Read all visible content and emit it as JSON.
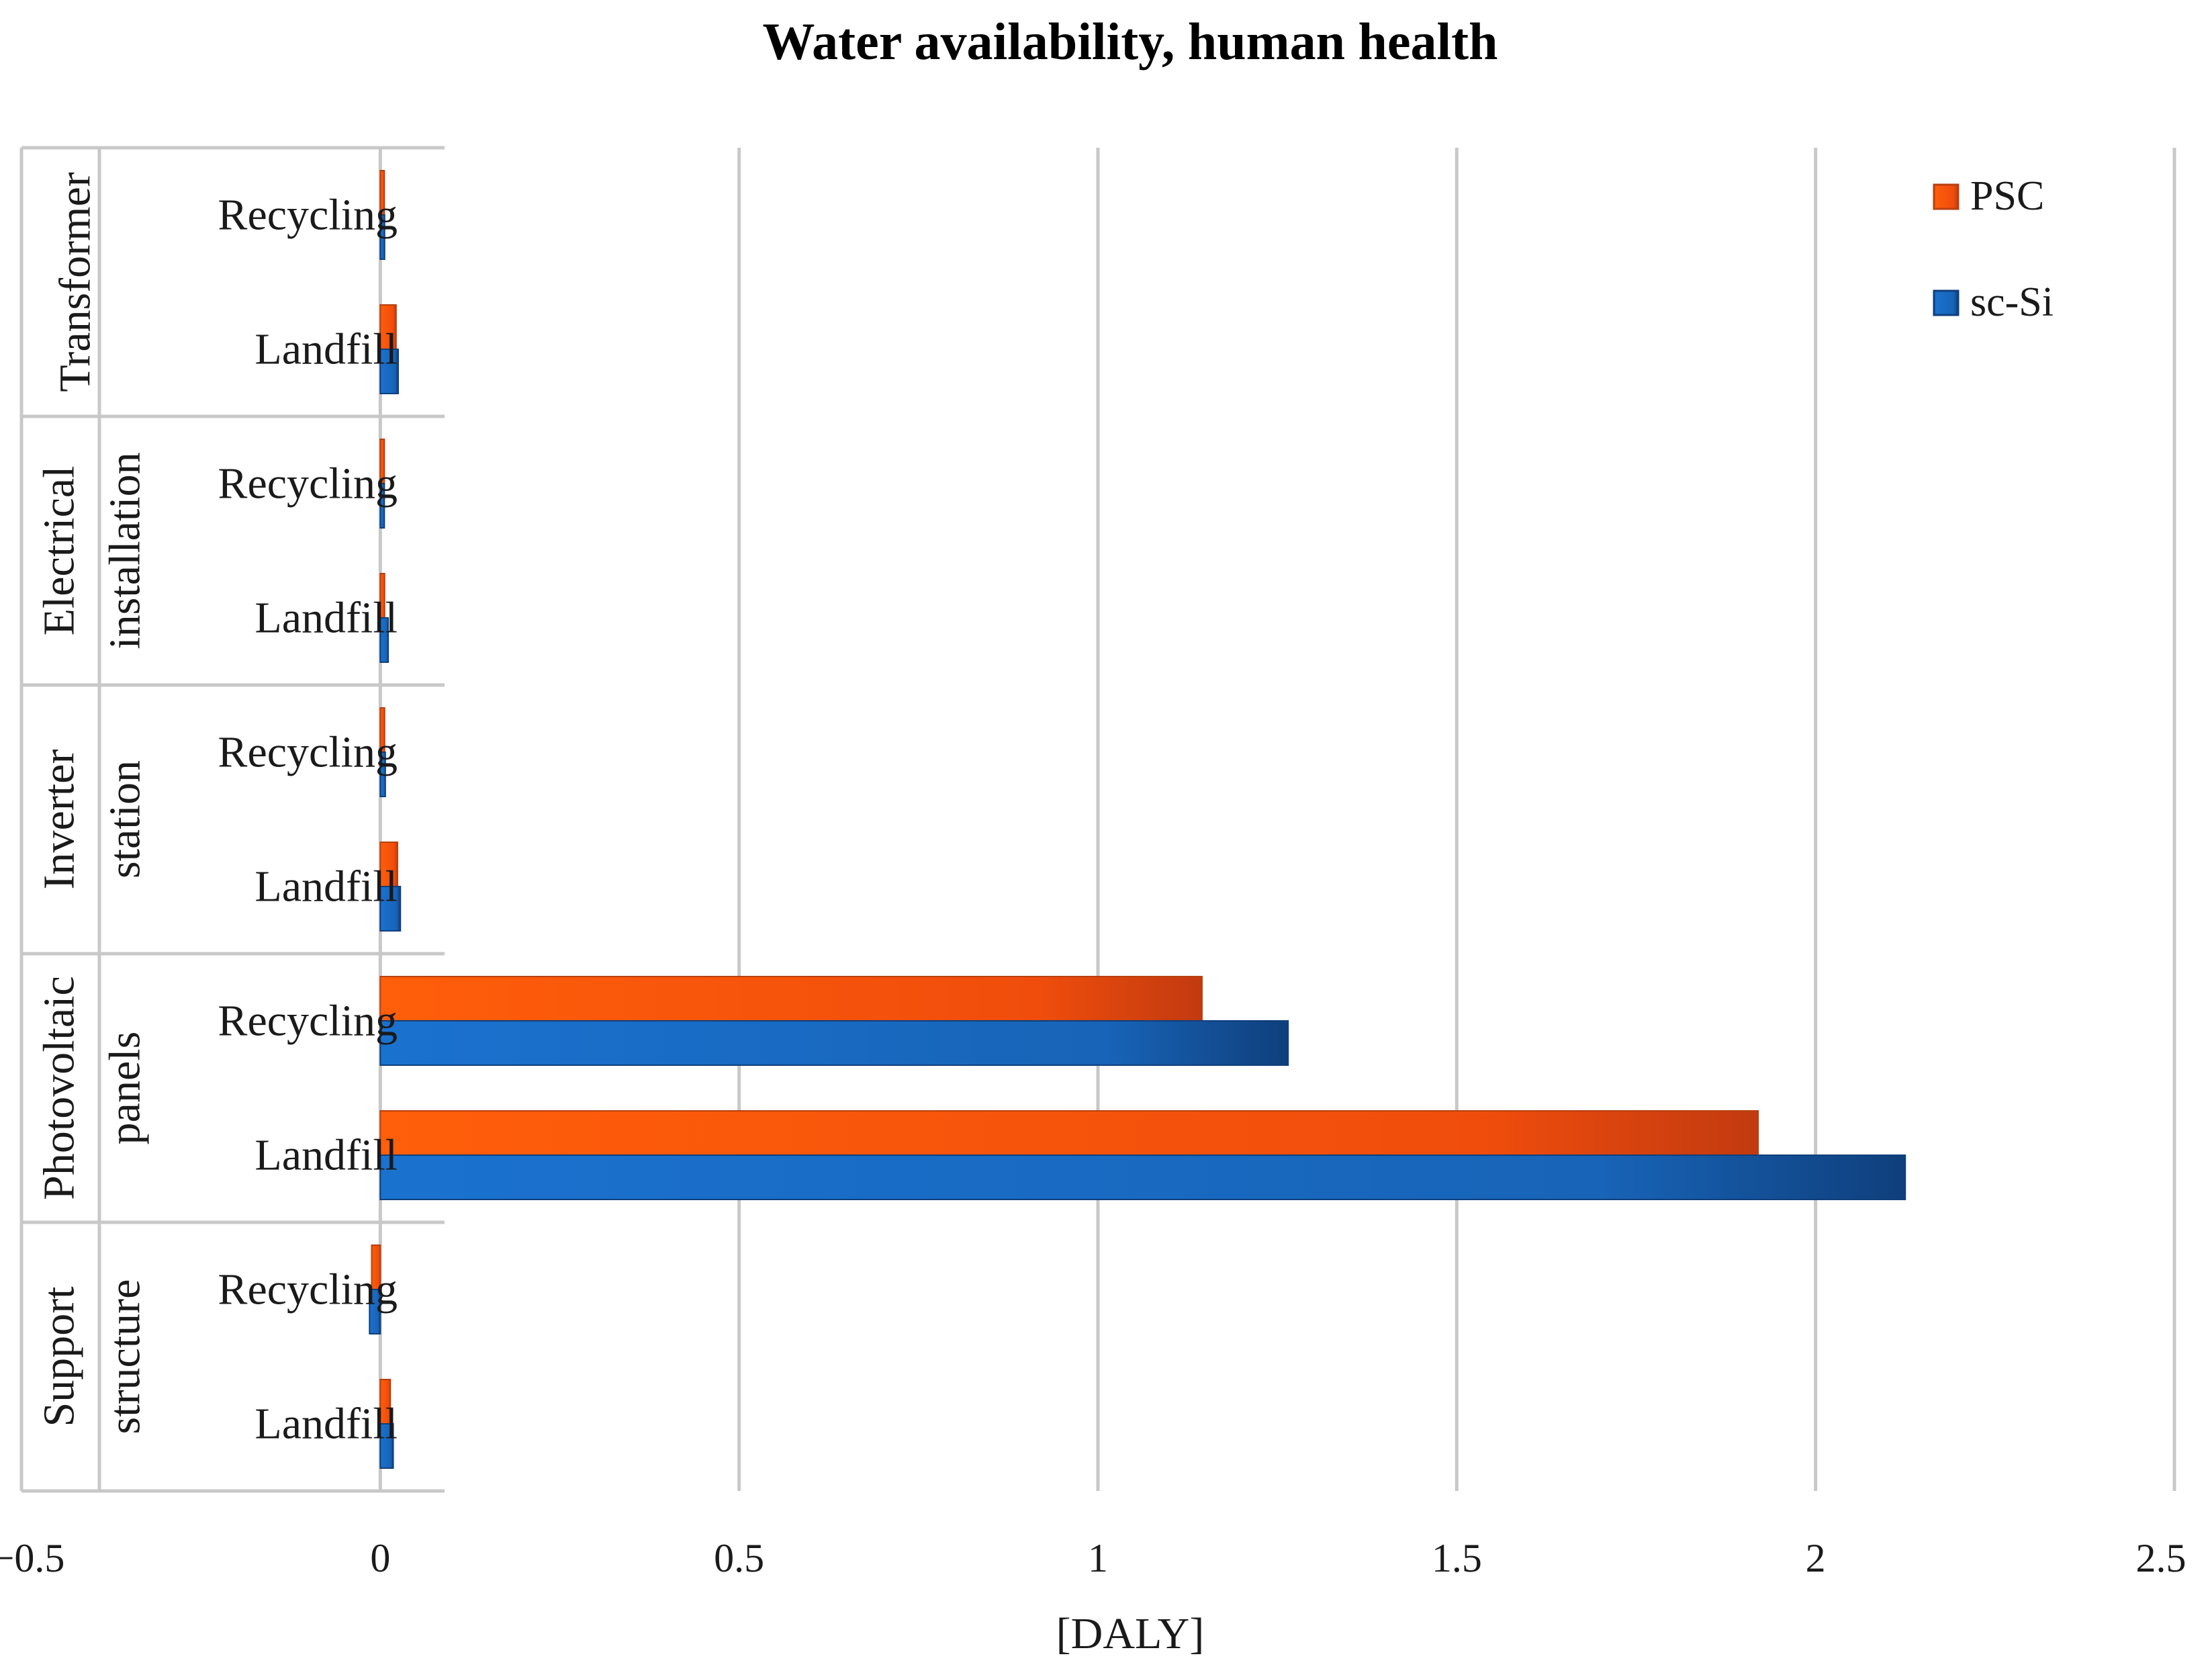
{
  "chart_data": {
    "type": "bar",
    "orientation": "horizontal",
    "title": "Water availability, human health",
    "xlabel": "[DALY]",
    "ylabel": "",
    "xlim": [
      -0.5,
      2.5
    ],
    "x_ticks": [
      -0.5,
      0,
      0.5,
      1,
      1.5,
      2,
      2.5
    ],
    "x_tick_labels": [
      "−0.5",
      "0",
      "0.5",
      "1",
      "1.5",
      "2",
      "2.5"
    ],
    "grid": true,
    "legend_position": "top-right",
    "groups": [
      {
        "name": "Transformer",
        "lines": [
          "Transformer"
        ]
      },
      {
        "name": "Electrical installation",
        "lines": [
          "Electrical",
          "installation"
        ]
      },
      {
        "name": "Inverter station",
        "lines": [
          "Inverter",
          "station"
        ]
      },
      {
        "name": "Photovoltaic panels",
        "lines": [
          "Photovoltaic",
          "panels"
        ]
      },
      {
        "name": "Support structure",
        "lines": [
          "Support",
          "structure"
        ]
      }
    ],
    "categories": [
      "Recycling",
      "Landfill",
      "Recycling",
      "Landfill",
      "Recycling",
      "Landfill",
      "Recycling",
      "Landfill",
      "Recycling",
      "Landfill"
    ],
    "series": [
      {
        "name": "PSC",
        "color": "#f05a14",
        "values": [
          0.005,
          0.022,
          0.003,
          0.006,
          0.006,
          0.024,
          1.145,
          1.92,
          -0.012,
          0.014
        ]
      },
      {
        "name": "sc-Si",
        "color": "#1767be",
        "values": [
          0.006,
          0.025,
          0.004,
          0.011,
          0.007,
          0.028,
          1.265,
          2.125,
          -0.015,
          0.018
        ]
      }
    ]
  }
}
